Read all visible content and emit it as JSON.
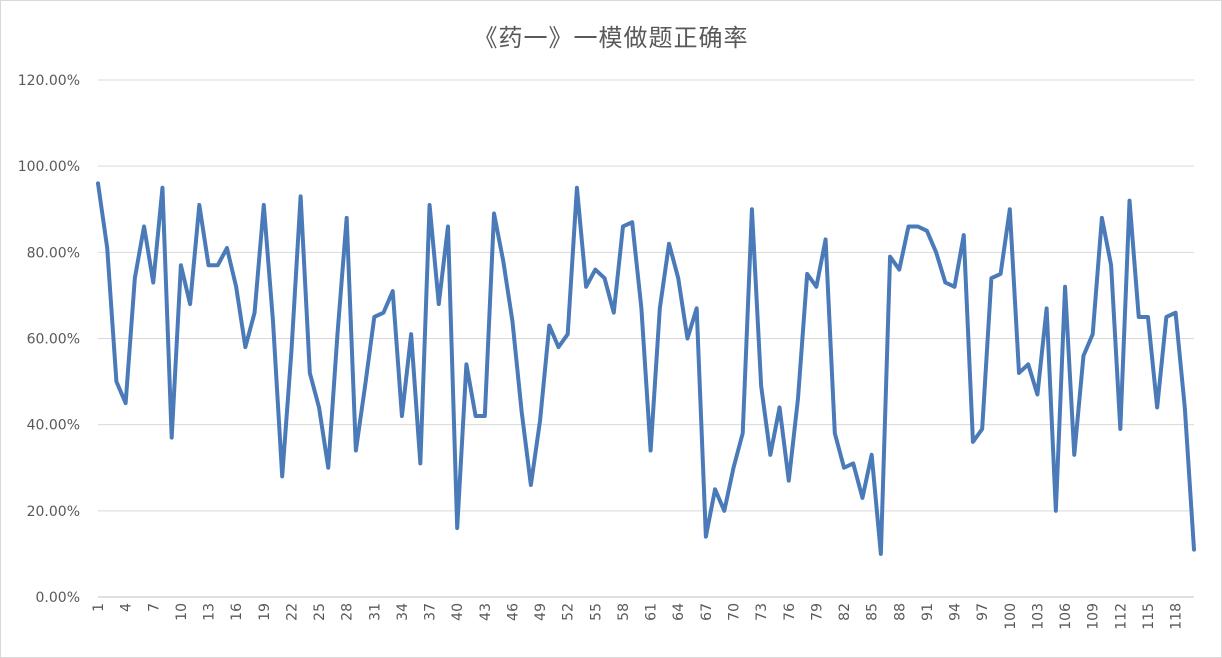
{
  "chart_data": {
    "type": "line",
    "title": "《药一》一模做题正确率",
    "xlabel": "",
    "ylabel": "",
    "ylim": [
      0,
      1.2
    ],
    "y_tick_labels": [
      "0.00%",
      "20.00%",
      "40.00%",
      "60.00%",
      "80.00%",
      "100.00%",
      "120.00%"
    ],
    "x_tick_labels": [
      "1",
      "4",
      "7",
      "10",
      "13",
      "16",
      "19",
      "22",
      "25",
      "28",
      "31",
      "34",
      "37",
      "40",
      "43",
      "46",
      "49",
      "52",
      "55",
      "58",
      "61",
      "64",
      "67",
      "70",
      "73",
      "76",
      "79",
      "82",
      "85",
      "88",
      "91",
      "94",
      "97",
      "100",
      "103",
      "106",
      "109",
      "112",
      "115",
      "118"
    ],
    "grid": true,
    "legend": "none",
    "line_color": "#4a7ab8",
    "series": [
      {
        "values": [
          0.96,
          0.81,
          0.5,
          0.45,
          0.74,
          0.86,
          0.73,
          0.95,
          0.37,
          0.77,
          0.68,
          0.91,
          0.77,
          0.77,
          0.81,
          0.72,
          0.58,
          0.66,
          0.91,
          0.64,
          0.28,
          0.57,
          0.93,
          0.52,
          0.44,
          0.3,
          0.61,
          0.88,
          0.34,
          0.49,
          0.65,
          0.66,
          0.71,
          0.42,
          0.61,
          0.31,
          0.91,
          0.68,
          0.86,
          0.16,
          0.54,
          0.42,
          0.42,
          0.89,
          0.78,
          0.64,
          0.43,
          0.26,
          0.41,
          0.63,
          0.58,
          0.61,
          0.95,
          0.72,
          0.76,
          0.74,
          0.66,
          0.86,
          0.87,
          0.67,
          0.34,
          0.67,
          0.82,
          0.74,
          0.6,
          0.67,
          0.14,
          0.25,
          0.2,
          0.3,
          0.38,
          0.9,
          0.49,
          0.33,
          0.44,
          0.27,
          0.46,
          0.75,
          0.72,
          0.83,
          0.38,
          0.3,
          0.31,
          0.23,
          0.33,
          0.1,
          0.79,
          0.76,
          0.86,
          0.86,
          0.85,
          0.8,
          0.73,
          0.72,
          0.84,
          0.36,
          0.39,
          0.74,
          0.75,
          0.9,
          0.52,
          0.54,
          0.47,
          0.67,
          0.2,
          0.72,
          0.33,
          0.56,
          0.61,
          0.88,
          0.77,
          0.39,
          0.92,
          0.65,
          0.65,
          0.44,
          0.65,
          0.66,
          0.44,
          0.11
        ]
      }
    ]
  }
}
